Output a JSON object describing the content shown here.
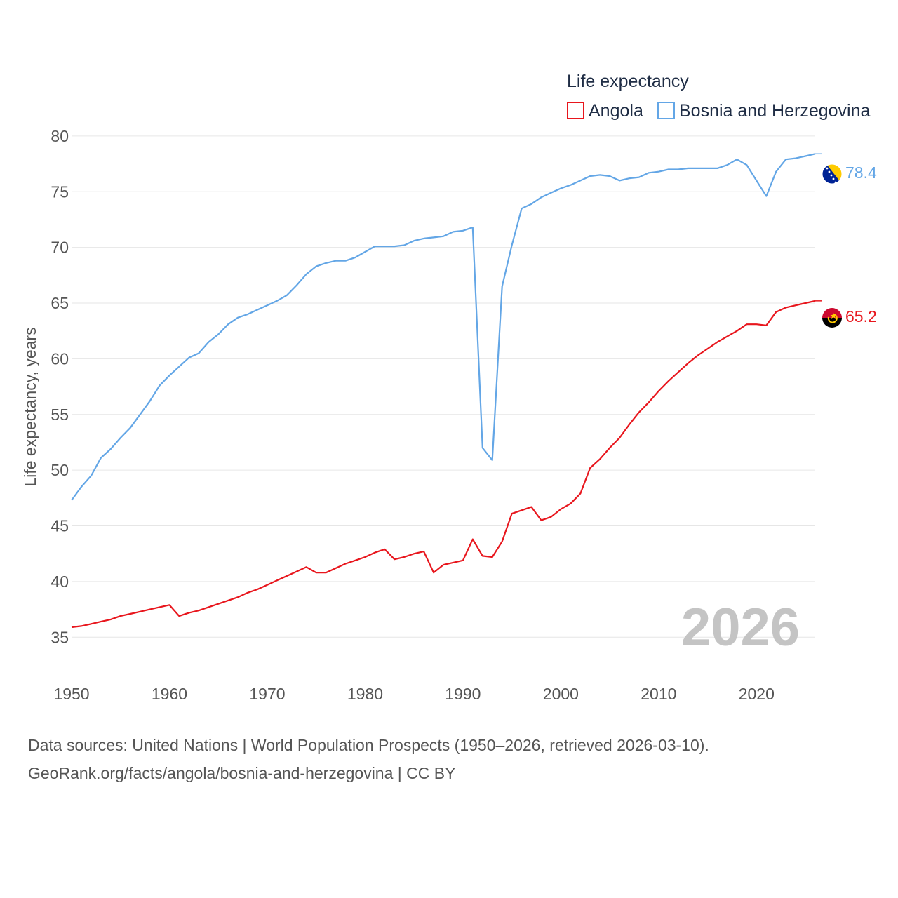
{
  "chart_data": {
    "type": "line",
    "title": "Life expectancy",
    "ylabel": "Life expectancy, years",
    "xlabel": "",
    "xlim": [
      1950,
      2026
    ],
    "ylim": [
      32.5,
      81
    ],
    "x_ticks": [
      1950,
      1960,
      1970,
      1980,
      1990,
      2000,
      2010,
      2020
    ],
    "y_ticks": [
      35,
      40,
      45,
      50,
      55,
      60,
      65,
      70,
      75,
      80
    ],
    "grid": true,
    "legend_position": "top-right",
    "current_year_label": "2026",
    "x": [
      1950,
      1951,
      1952,
      1953,
      1954,
      1955,
      1956,
      1957,
      1958,
      1959,
      1960,
      1961,
      1962,
      1963,
      1964,
      1965,
      1966,
      1967,
      1968,
      1969,
      1970,
      1971,
      1972,
      1973,
      1974,
      1975,
      1976,
      1977,
      1978,
      1979,
      1980,
      1981,
      1982,
      1983,
      1984,
      1985,
      1986,
      1987,
      1988,
      1989,
      1990,
      1991,
      1992,
      1993,
      1994,
      1995,
      1996,
      1997,
      1998,
      1999,
      2000,
      2001,
      2002,
      2003,
      2004,
      2005,
      2006,
      2007,
      2008,
      2009,
      2010,
      2011,
      2012,
      2013,
      2014,
      2015,
      2016,
      2017,
      2018,
      2019,
      2020,
      2021,
      2022,
      2023,
      2024,
      2025,
      2026
    ],
    "series": [
      {
        "name": "Angola",
        "color": "#e8161d",
        "end_label": "65.2",
        "values": [
          35.9,
          36.0,
          36.2,
          36.4,
          36.6,
          36.9,
          37.1,
          37.3,
          37.5,
          37.7,
          37.9,
          36.9,
          37.2,
          37.4,
          37.7,
          38.0,
          38.3,
          38.6,
          39.0,
          39.3,
          39.7,
          40.1,
          40.5,
          40.9,
          41.3,
          40.8,
          40.8,
          41.2,
          41.6,
          41.9,
          42.2,
          42.6,
          42.9,
          42.0,
          42.2,
          42.5,
          42.7,
          40.8,
          41.5,
          41.7,
          41.9,
          43.8,
          42.3,
          42.2,
          43.6,
          46.1,
          46.4,
          46.7,
          45.5,
          45.8,
          46.5,
          47.0,
          47.9,
          50.2,
          51.0,
          52.0,
          52.9,
          54.1,
          55.2,
          56.1,
          57.1,
          58.0,
          58.8,
          59.6,
          60.3,
          60.9,
          61.5,
          62.0,
          62.5,
          63.1,
          63.1,
          63.0,
          64.2,
          64.6,
          64.8,
          65.0,
          65.2
        ]
      },
      {
        "name": "Bosnia and Herzegovina",
        "color": "#63a6e6",
        "end_label": "78.4",
        "values": [
          47.3,
          48.5,
          49.5,
          51.1,
          51.9,
          52.9,
          53.8,
          55.0,
          56.2,
          57.6,
          58.5,
          59.3,
          60.1,
          60.5,
          61.5,
          62.2,
          63.1,
          63.7,
          64.0,
          64.4,
          64.8,
          65.2,
          65.7,
          66.6,
          67.6,
          68.3,
          68.6,
          68.8,
          68.8,
          69.1,
          69.6,
          70.1,
          70.1,
          70.1,
          70.2,
          70.6,
          70.8,
          70.9,
          71.0,
          71.4,
          71.5,
          71.8,
          52.0,
          50.9,
          66.5,
          70.2,
          73.5,
          73.9,
          74.5,
          74.9,
          75.3,
          75.6,
          76.0,
          76.4,
          76.5,
          76.4,
          76.0,
          76.2,
          76.3,
          76.7,
          76.8,
          77.0,
          77.0,
          77.1,
          77.1,
          77.1,
          77.1,
          77.4,
          77.9,
          77.4,
          76.0,
          74.6,
          76.8,
          77.9,
          78.0,
          78.2,
          78.4
        ]
      }
    ]
  },
  "footer": {
    "line1": "Data sources: United Nations | World Population Prospects (1950–2026, retrieved 2026-03-10).",
    "line2": "GeoRank.org/facts/angola/bosnia-and-herzegovina | CC BY"
  }
}
